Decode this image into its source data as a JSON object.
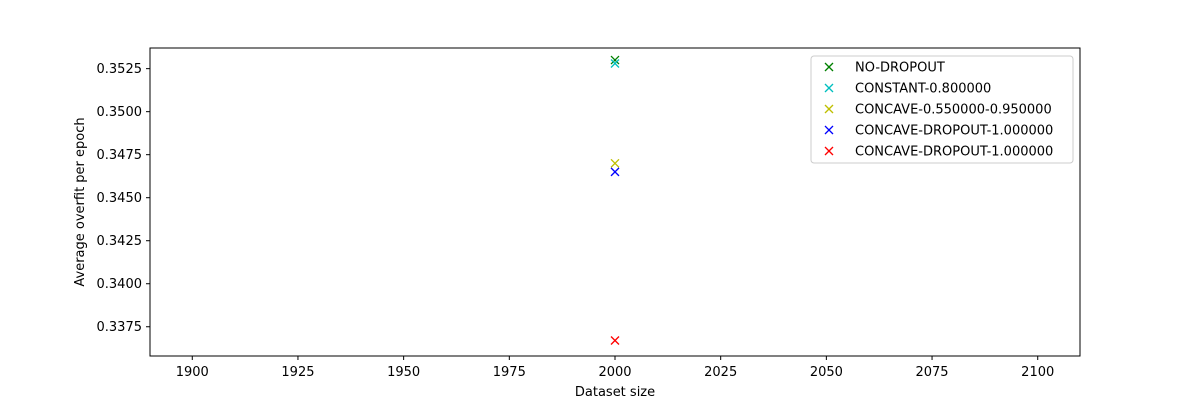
{
  "chart_data": {
    "type": "scatter",
    "xlabel": "Dataset size",
    "ylabel": "Average overfit per epoch",
    "xlim": [
      1890,
      2110
    ],
    "ylim": [
      0.3358,
      0.3537
    ],
    "xticks": [
      1900,
      1925,
      1950,
      1975,
      2000,
      2025,
      2050,
      2075,
      2100
    ],
    "yticks": [
      0.3375,
      0.34,
      0.3425,
      0.345,
      0.3475,
      0.35,
      0.3525
    ],
    "xtick_labels": [
      "1900",
      "1925",
      "1950",
      "1975",
      "2000",
      "2025",
      "2050",
      "2075",
      "2100"
    ],
    "ytick_labels": [
      "0.3375",
      "0.3400",
      "0.3425",
      "0.3450",
      "0.3475",
      "0.3500",
      "0.3525"
    ],
    "grid": false,
    "legend_position": "top-right",
    "marker": "x",
    "series": [
      {
        "name": "NO-DROPOUT",
        "color": "#008000",
        "x": [
          2000
        ],
        "y": [
          0.353
        ]
      },
      {
        "name": "CONSTANT-0.800000",
        "color": "#00bfbf",
        "x": [
          2000
        ],
        "y": [
          0.3528
        ]
      },
      {
        "name": "CONCAVE-0.550000-0.950000",
        "color": "#bfbf00",
        "x": [
          2000
        ],
        "y": [
          0.347
        ]
      },
      {
        "name": "CONCAVE-DROPOUT-1.000000",
        "color": "#0000ff",
        "x": [
          2000
        ],
        "y": [
          0.3465
        ]
      },
      {
        "name": "CONCAVE-DROPOUT-1.000000",
        "color": "#ff0000",
        "x": [
          2000
        ],
        "y": [
          0.3367
        ]
      }
    ]
  }
}
